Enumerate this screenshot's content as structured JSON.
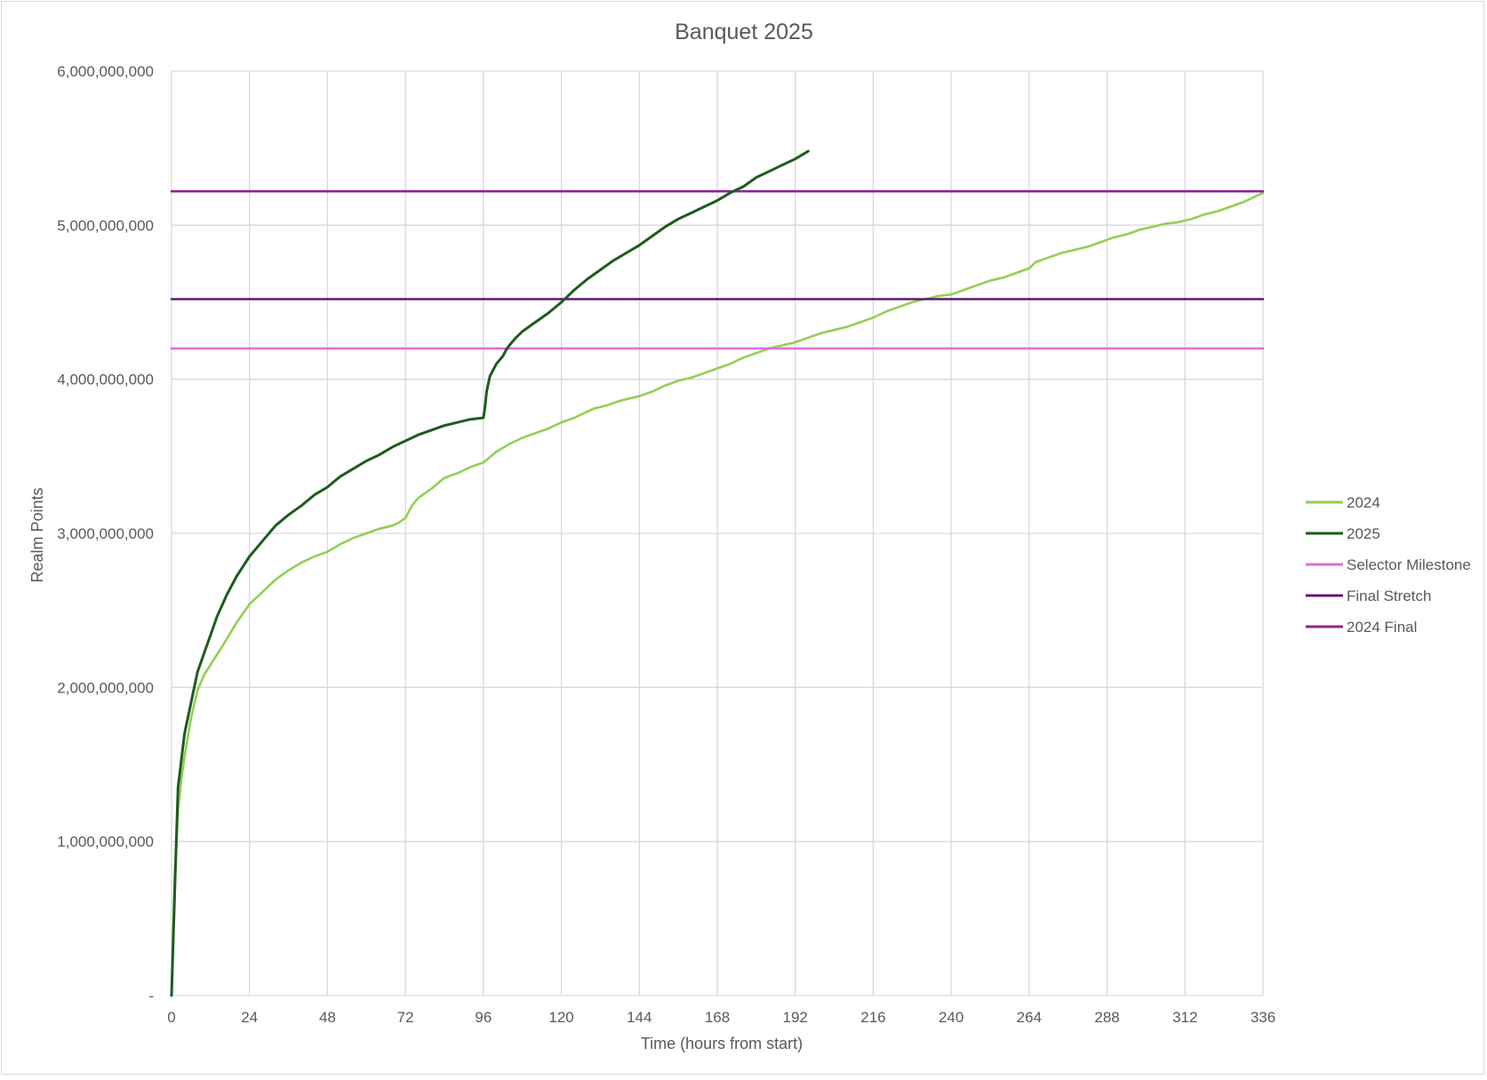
{
  "chart_data": {
    "type": "line",
    "title": "Banquet 2025",
    "xlabel": "Time (hours from start)",
    "ylabel": "Realm Points",
    "xlim": [
      0,
      336
    ],
    "ylim": [
      0,
      6000000000
    ],
    "x_ticks": [
      "0",
      "24",
      "48",
      "72",
      "96",
      "120",
      "144",
      "168",
      "192",
      "216",
      "240",
      "264",
      "288",
      "312",
      "336"
    ],
    "y_ticks": [
      "-",
      "1,000,000,000",
      "2,000,000,000",
      "3,000,000,000",
      "4,000,000,000",
      "5,000,000,000",
      "6,000,000,000"
    ],
    "grid": true,
    "legend_position": "right",
    "series": [
      {
        "name": "2024",
        "color": "#92d050",
        "x": [
          0,
          1,
          2,
          3,
          4,
          6,
          8,
          10,
          13,
          16,
          20,
          24,
          28,
          32,
          36,
          40,
          44,
          48,
          52,
          56,
          60,
          64,
          68,
          70,
          72,
          74,
          76,
          80,
          84,
          88,
          92,
          96,
          100,
          104,
          108,
          112,
          116,
          120,
          124,
          128,
          130,
          134,
          138,
          144,
          148,
          152,
          156,
          160,
          164,
          168,
          172,
          176,
          180,
          184,
          188,
          192,
          196,
          200,
          204,
          208,
          212,
          216,
          220,
          224,
          228,
          232,
          236,
          240,
          244,
          248,
          252,
          256,
          260,
          264,
          266,
          270,
          274,
          278,
          282,
          286,
          290,
          294,
          298,
          302,
          306,
          310,
          314,
          318,
          322,
          326,
          330,
          336
        ],
        "y": [
          0,
          800000000,
          1200000000,
          1400000000,
          1550000000,
          1800000000,
          1980000000,
          2080000000,
          2180000000,
          2280000000,
          2420000000,
          2540000000,
          2620000000,
          2700000000,
          2760000000,
          2810000000,
          2850000000,
          2880000000,
          2930000000,
          2970000000,
          3000000000,
          3030000000,
          3050000000,
          3070000000,
          3100000000,
          3180000000,
          3230000000,
          3290000000,
          3360000000,
          3390000000,
          3430000000,
          3460000000,
          3530000000,
          3580000000,
          3620000000,
          3650000000,
          3680000000,
          3720000000,
          3750000000,
          3790000000,
          3810000000,
          3830000000,
          3860000000,
          3890000000,
          3920000000,
          3960000000,
          3990000000,
          4010000000,
          4040000000,
          4070000000,
          4100000000,
          4140000000,
          4170000000,
          4200000000,
          4220000000,
          4240000000,
          4270000000,
          4300000000,
          4320000000,
          4340000000,
          4370000000,
          4400000000,
          4440000000,
          4470000000,
          4500000000,
          4520000000,
          4540000000,
          4550000000,
          4580000000,
          4610000000,
          4640000000,
          4660000000,
          4690000000,
          4720000000,
          4760000000,
          4790000000,
          4820000000,
          4840000000,
          4860000000,
          4890000000,
          4920000000,
          4940000000,
          4970000000,
          4990000000,
          5010000000,
          5020000000,
          5040000000,
          5070000000,
          5090000000,
          5120000000,
          5150000000,
          5210000000
        ]
      },
      {
        "name": "2025",
        "color": "#1e5b1e",
        "x": [
          0,
          1,
          2,
          4,
          6,
          8,
          10,
          12,
          14,
          17,
          20,
          24,
          28,
          32,
          36,
          40,
          44,
          48,
          52,
          56,
          60,
          64,
          68,
          72,
          76,
          80,
          84,
          88,
          92,
          96,
          96.5,
          97,
          98,
          100,
          102,
          103,
          104,
          106,
          108,
          112,
          116,
          120,
          124,
          128,
          132,
          136,
          140,
          144,
          148,
          152,
          156,
          160,
          164,
          168,
          172,
          176,
          180,
          184,
          188,
          192,
          196
        ],
        "y": [
          0,
          700000000,
          1350000000,
          1700000000,
          1900000000,
          2100000000,
          2220000000,
          2340000000,
          2460000000,
          2600000000,
          2720000000,
          2850000000,
          2950000000,
          3050000000,
          3120000000,
          3180000000,
          3250000000,
          3300000000,
          3370000000,
          3420000000,
          3470000000,
          3510000000,
          3560000000,
          3600000000,
          3640000000,
          3670000000,
          3700000000,
          3720000000,
          3740000000,
          3750000000,
          3820000000,
          3920000000,
          4020000000,
          4100000000,
          4150000000,
          4190000000,
          4220000000,
          4270000000,
          4310000000,
          4370000000,
          4430000000,
          4500000000,
          4580000000,
          4650000000,
          4710000000,
          4770000000,
          4820000000,
          4870000000,
          4930000000,
          4990000000,
          5040000000,
          5080000000,
          5120000000,
          5160000000,
          5210000000,
          5250000000,
          5310000000,
          5350000000,
          5390000000,
          5430000000,
          5480000000
        ]
      },
      {
        "name": "Selector Milestone",
        "color": "#e06bd6",
        "x": [
          0,
          336
        ],
        "y": [
          4200000000,
          4200000000
        ]
      },
      {
        "name": "Final Stretch",
        "color": "#5e1a6e",
        "x": [
          0,
          336
        ],
        "y": [
          4520000000,
          4520000000
        ]
      },
      {
        "name": "2024 Final",
        "color": "#8e2494",
        "x": [
          0,
          336
        ],
        "y": [
          5220000000,
          5220000000
        ]
      }
    ]
  }
}
